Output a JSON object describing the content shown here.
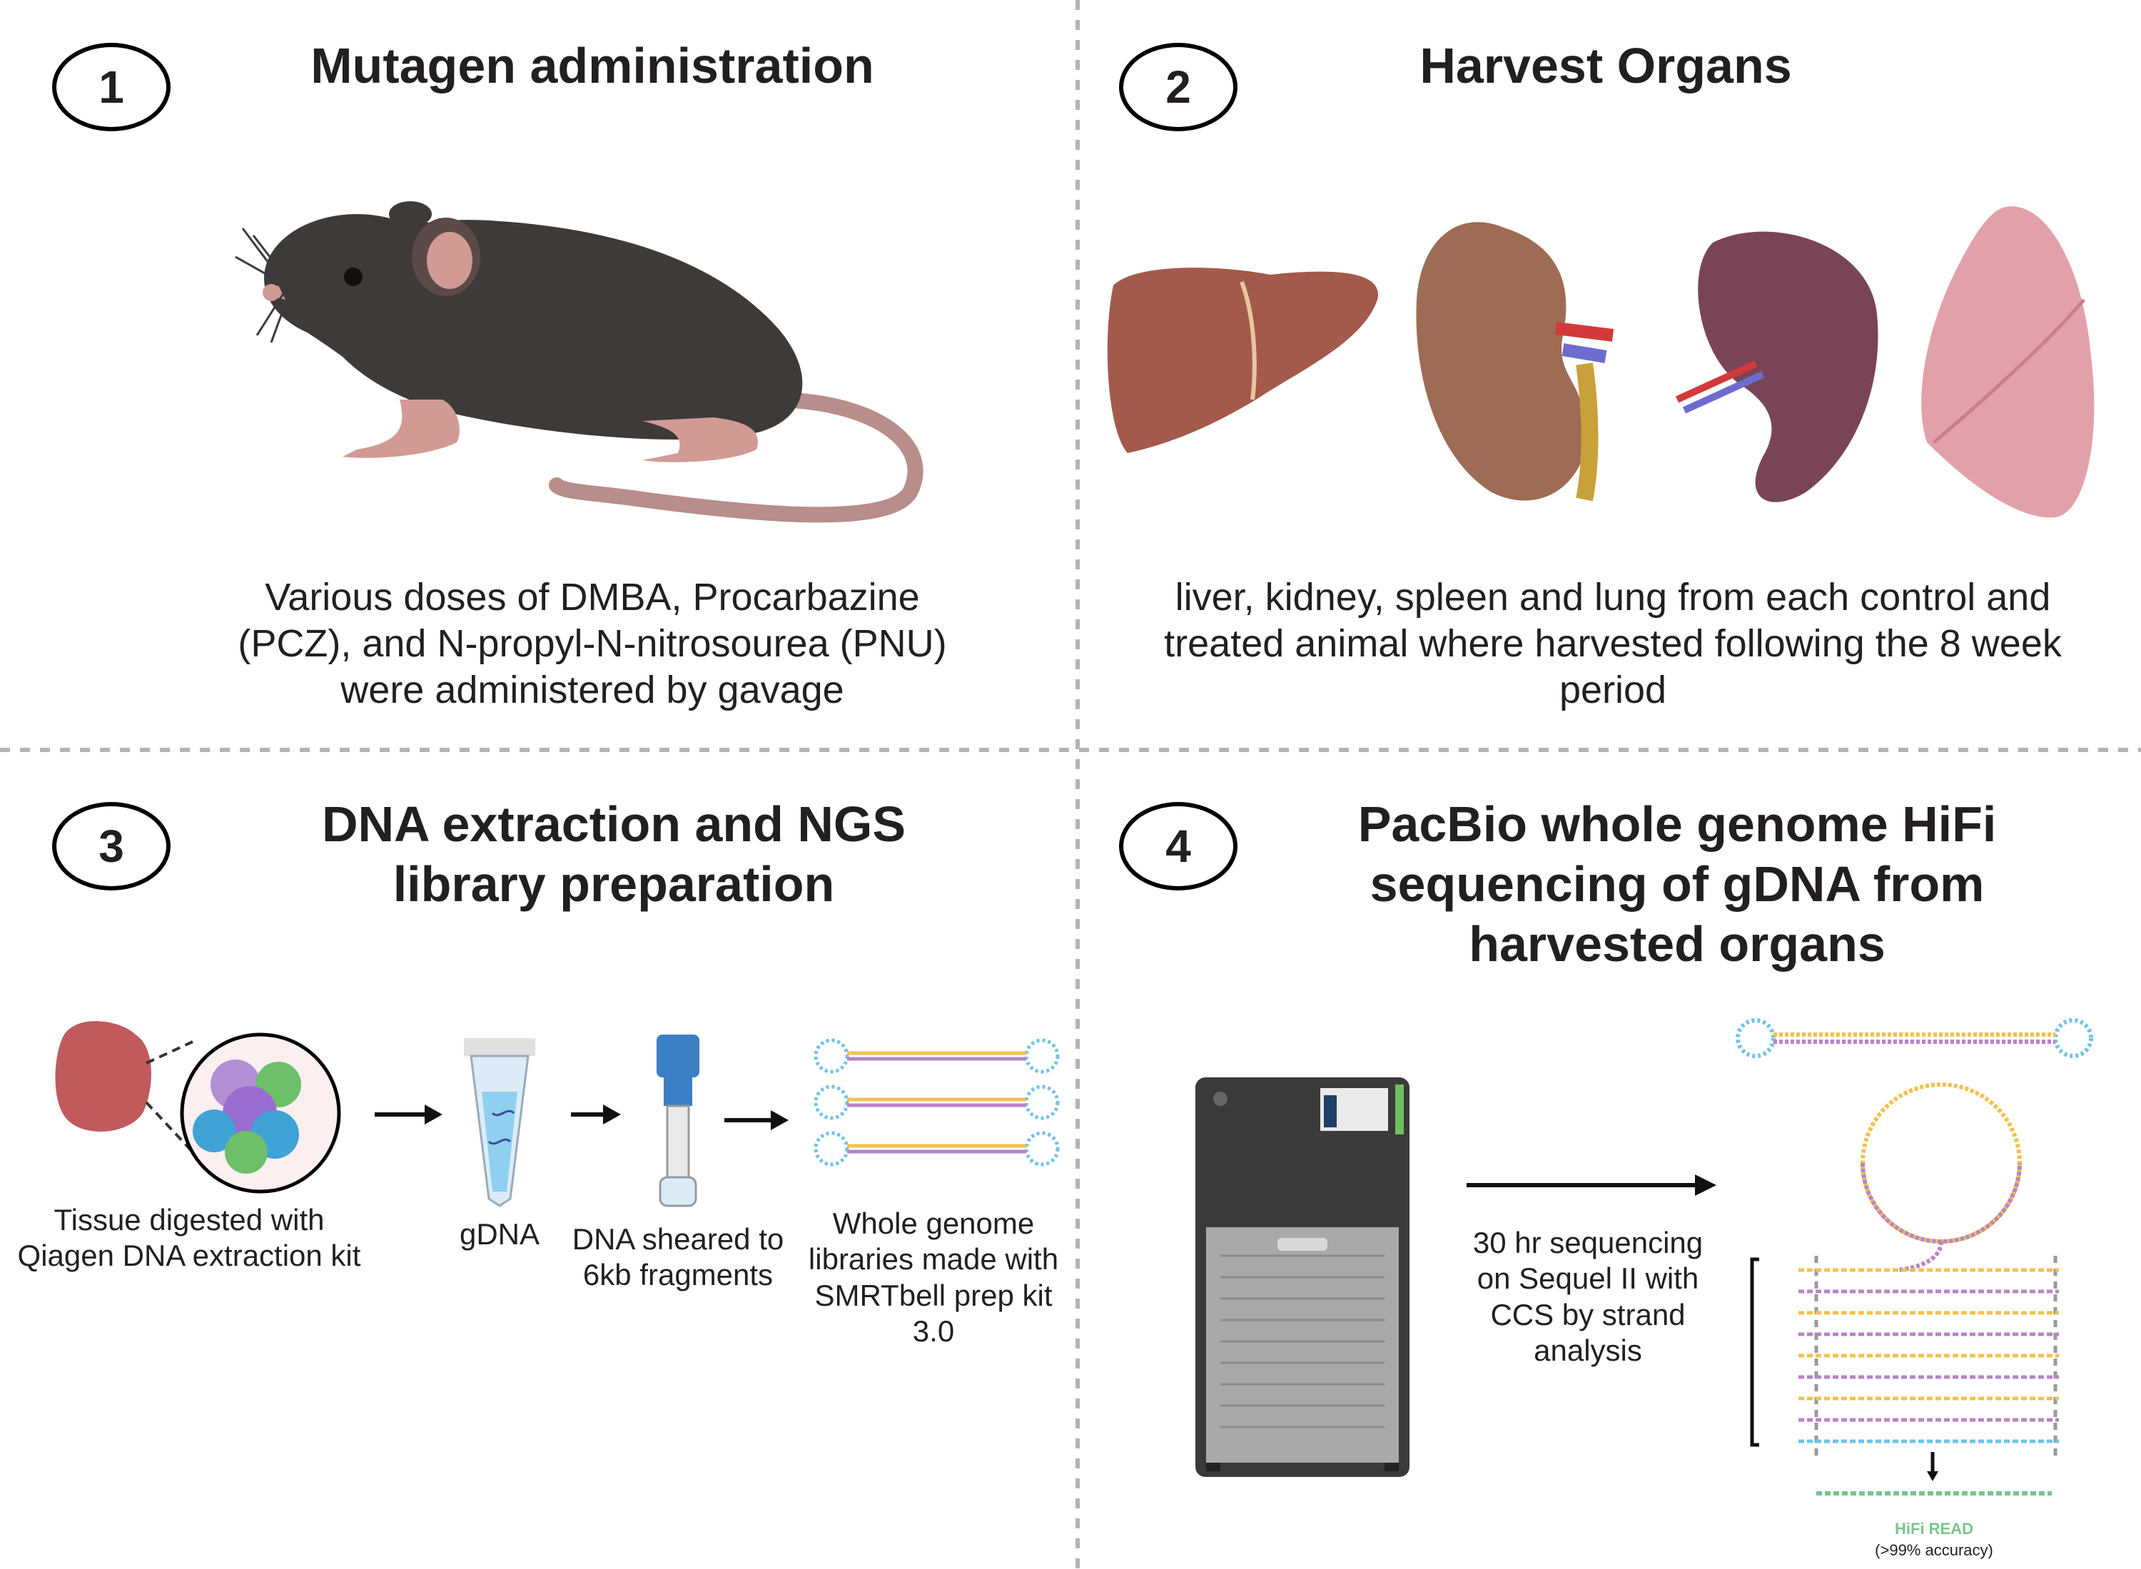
{
  "steps": [
    {
      "number": "1",
      "title": "Mutagen administration",
      "description": "Various doses of DMBA, Procarbazine (PCZ), and N-propyl-N-nitrosourea (PNU) were administered by gavage"
    },
    {
      "number": "2",
      "title": "Harvest Organs",
      "description": "liver, kidney, spleen and lung from each control and treated animal where harvested following the 8 week period"
    },
    {
      "number": "3",
      "title": "DNA extraction and NGS library preparation",
      "labels": {
        "tissue": "Tissue digested with Qiagen DNA extraction kit",
        "gdna": "gDNA",
        "sheared": "DNA sheared to 6kb fragments",
        "libraries": "Whole genome libraries made with SMRTbell prep kit 3.0"
      }
    },
    {
      "number": "4",
      "title": "PacBio whole genome HiFi sequencing of gDNA from harvested organs",
      "labels": {
        "sequencing": "30 hr sequencing on Sequel II with CCS by strand analysis",
        "hifi_read": "HiFi READ",
        "accuracy": "(>99% accuracy)"
      }
    }
  ],
  "colors": {
    "divider": "#b3b3b3",
    "mouse": "#3d3a37",
    "mouse_pink": "#d19a94",
    "liver": "#a35a4a",
    "kidney": "#9e6b55",
    "spleen": "#7a4458",
    "lung": "#e2a1a9",
    "tissue": "#c05a5c",
    "tube_blue": "#3b7fc4",
    "adapter_blue": "#6ec3e8",
    "insert_yellow": "#f2c14e",
    "insert_purple": "#b784c7",
    "sequencer": "#3a3a3a"
  },
  "icons": [
    "mouse",
    "liver",
    "kidney",
    "spleen",
    "lung",
    "tissue-sample",
    "cell-cluster",
    "microcentrifuge-tube",
    "dna-shearing-tube",
    "smrtbell-library",
    "sequel-ii-sequencer",
    "circular-smrtbell-template",
    "subreads",
    "hifi-read"
  ]
}
